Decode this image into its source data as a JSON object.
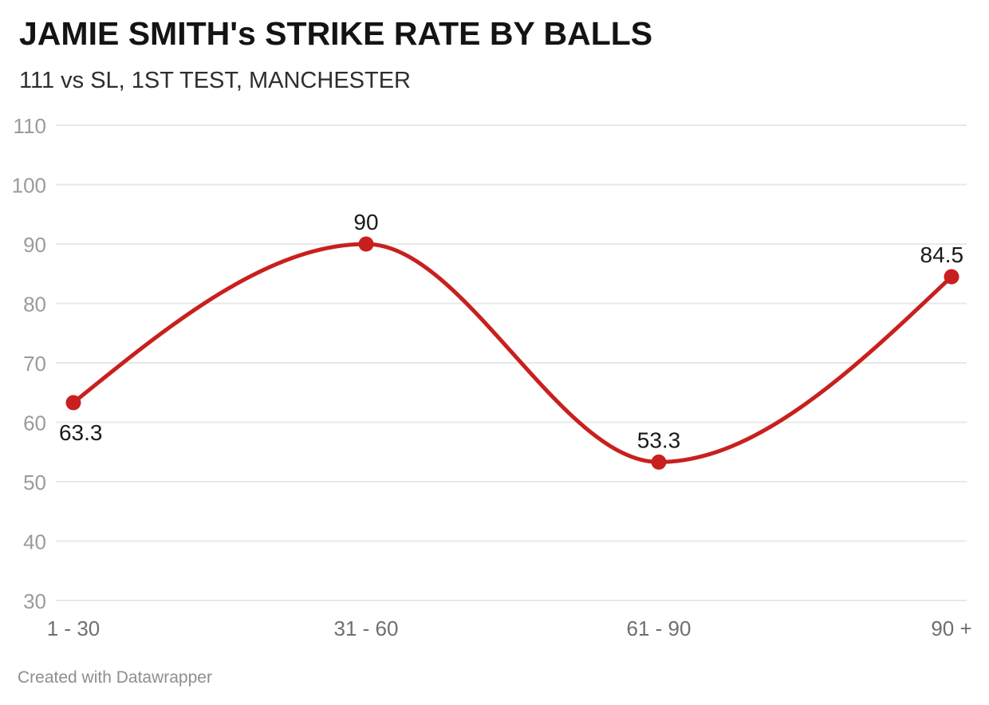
{
  "header": {
    "title": "JAMIE SMITH's STRIKE RATE BY BALLS",
    "subtitle": "111 vs SL, 1ST TEST, MANCHESTER"
  },
  "footer": {
    "credit": "Created with Datawrapper"
  },
  "chart_data": {
    "type": "line",
    "title": "JAMIE SMITH's STRIKE RATE BY BALLS",
    "subtitle": "111 vs SL, 1ST TEST, MANCHESTER",
    "categories": [
      "1 - 30",
      "31 - 60",
      "61 - 90",
      "90 +"
    ],
    "values": [
      63.3,
      90,
      53.3,
      84.5
    ],
    "point_labels": [
      "63.3",
      "90",
      "53.3",
      "84.5"
    ],
    "label_positions": [
      "below",
      "above",
      "above",
      "above"
    ],
    "xlabel": "",
    "ylabel": "",
    "ylim": [
      30,
      110
    ],
    "yticks": [
      30,
      40,
      50,
      60,
      70,
      80,
      90,
      100,
      110
    ],
    "grid": "horizontal",
    "legend": "none",
    "line_shape": "smooth-monotone",
    "colors": {
      "line": "#c8201e",
      "point": "#c8201e"
    }
  }
}
